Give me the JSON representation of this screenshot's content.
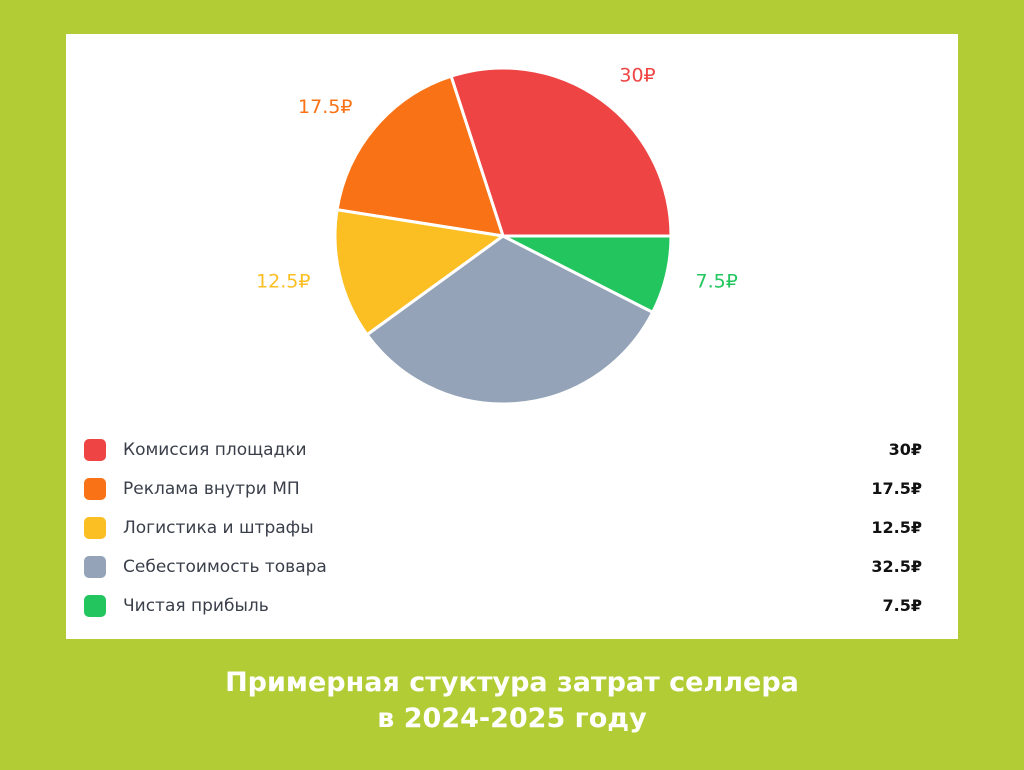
{
  "chart_data": {
    "type": "pie",
    "categories": [
      "Комиссия площадки",
      "Реклама внутри МП",
      "Логистика и штрафы",
      "Себестоимость товара",
      "Чистая прибыль"
    ],
    "values": [
      30,
      17.5,
      12.5,
      32.5,
      7.5
    ],
    "data_labels": [
      "30₽",
      "17.5₽",
      "12.5₽",
      "32.5₽",
      "7.5₽"
    ],
    "colors": [
      "#ef4444",
      "#f97316",
      "#fbbf24",
      "#94a3b8",
      "#22c55e"
    ],
    "legend_position": "bottom"
  },
  "legend": [
    {
      "label": "Комиссия площадки",
      "value": "30₽",
      "color": "#ef4444"
    },
    {
      "label": "Реклама внутри МП",
      "value": "17.5₽",
      "color": "#f97316"
    },
    {
      "label": "Логистика и штрафы",
      "value": "12.5₽",
      "color": "#fbbf24"
    },
    {
      "label": "Себестоимость товара",
      "value": "32.5₽",
      "color": "#94a3b8"
    },
    {
      "label": "Чистая прибыль",
      "value": "7.5₽",
      "color": "#22c55e"
    }
  ],
  "caption": {
    "line1": "Примерная стуктура затрат селлера",
    "line2": "в 2024-2025 году"
  }
}
